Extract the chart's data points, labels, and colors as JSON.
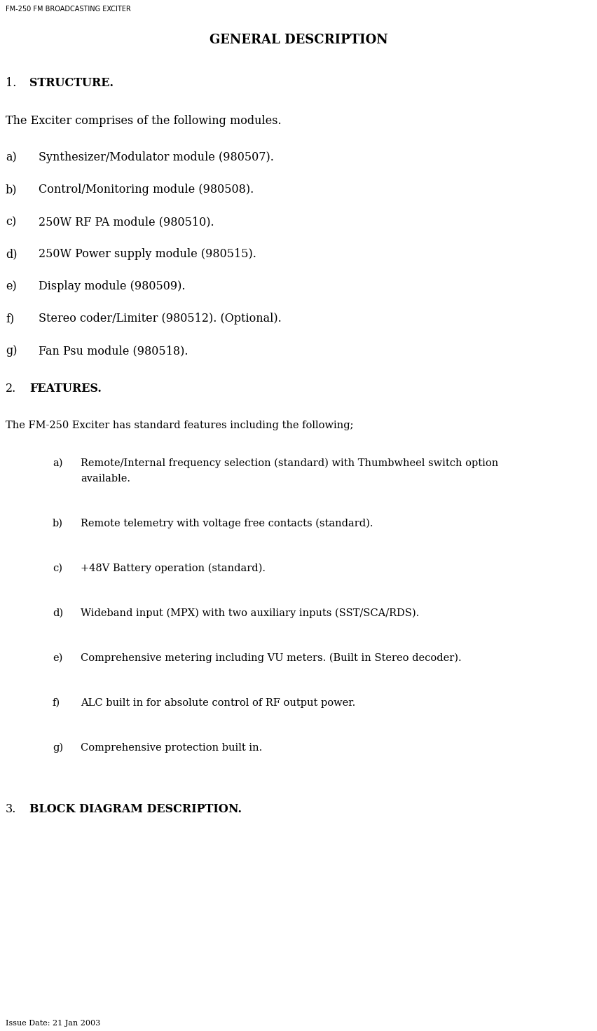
{
  "header": "FM-250 FM BROADCASTING EXCITER",
  "issue_date": "Issue Date: 21 Jan 2003",
  "title": "GENERAL DESCRIPTION",
  "bg_color": "#ffffff",
  "text_color": "#000000",
  "header_fontsize": 7.0,
  "title_fontsize": 13.0,
  "body_fontsize": 11.5,
  "body2_fontsize": 10.5,
  "small_fontsize": 8.0,
  "section1_num": "1.",
  "section1_head": "  STRUCTURE.",
  "section1_intro": "The Exciter comprises of the following modules.",
  "section1_labels": [
    "a)",
    "b)",
    "c)",
    "d)",
    "e)",
    "f)",
    "g)"
  ],
  "section1_texts": [
    "Synthesizer/Modulator module (980507).",
    "Control/Monitoring module (980508).",
    "250W RF PA module (980510).",
    "250W Power supply module (980515).",
    "Display module (980509).",
    "Stereo coder/Limiter (980512). (Optional).",
    "Fan Psu module (980518)."
  ],
  "section2_num": "2.",
  "section2_head": "  FEATURES.",
  "section2_intro": "The FM-250 Exciter has standard features including the following;",
  "section2_labels": [
    "a)",
    "b)",
    "c)",
    "d)",
    "e)",
    "f)",
    "g)"
  ],
  "section2_texts": [
    "Remote/Internal frequency selection (standard) with Thumbwheel switch option\navailable.",
    "Remote telemetry with voltage free contacts (standard).",
    "+48V Battery operation (standard).",
    "Wideband input (MPX) with two auxiliary inputs (SST/SCA/RDS).",
    "Comprehensive metering including VU meters. (Built in Stereo decoder).",
    "ALC built in for absolute control of RF output power.",
    "Comprehensive protection built in."
  ],
  "section3_num": "3.",
  "section3_head": "  BLOCK DIAGRAM DESCRIPTION."
}
